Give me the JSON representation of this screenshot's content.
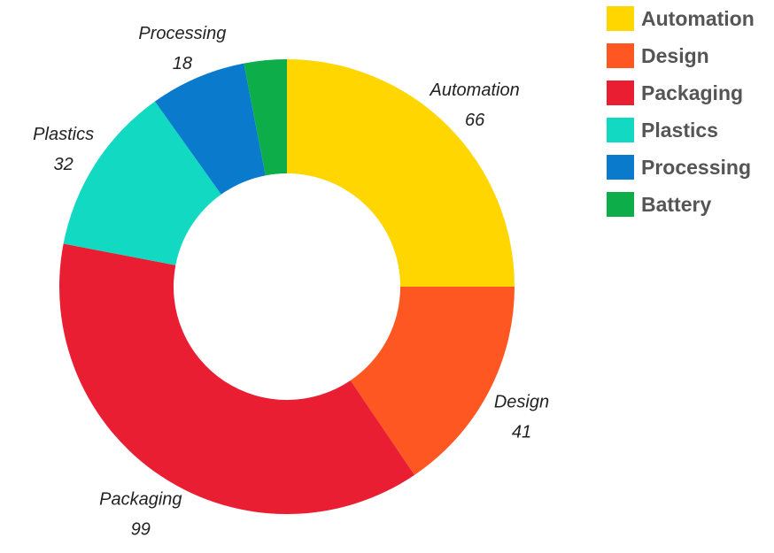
{
  "chart_data": {
    "type": "pie",
    "style": "donut",
    "title": "",
    "categories": [
      "Automation",
      "Design",
      "Packaging",
      "Plastics",
      "Processing",
      "Battery"
    ],
    "values": [
      66,
      41,
      99,
      32,
      18,
      8
    ],
    "colors": [
      "#FFD600",
      "#FF5722",
      "#E91E33",
      "#12D9C1",
      "#0A7BCC",
      "#0DAD4A"
    ],
    "data_labels": [
      {
        "name": "Automation",
        "value": "66"
      },
      {
        "name": "Design",
        "value": "41"
      },
      {
        "name": "Packaging",
        "value": "99"
      },
      {
        "name": "Plastics",
        "value": "32"
      },
      {
        "name": "Processing",
        "value": "18"
      }
    ],
    "legend": {
      "placement": "top-right",
      "items": [
        "Automation",
        "Design",
        "Packaging",
        "Plastics",
        "Processing",
        "Battery"
      ]
    }
  }
}
